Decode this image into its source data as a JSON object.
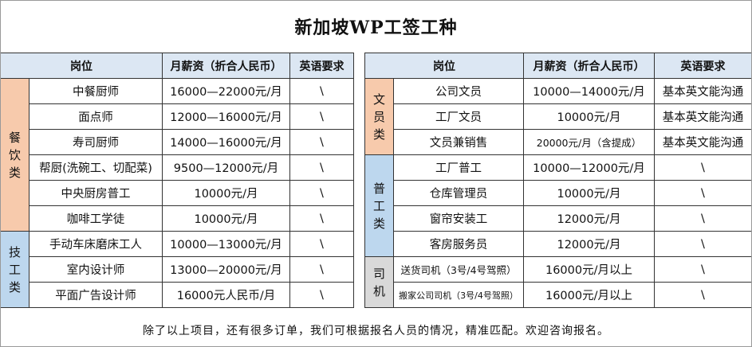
{
  "title": "新加坡WP工签工种",
  "headers": {
    "position": "岗位",
    "salary": "月薪资（折合人民币）",
    "english": "英语要求"
  },
  "left": {
    "groups": [
      {
        "category": [
          "餐",
          "饮",
          "类"
        ],
        "rows": [
          {
            "job": "中餐厨师",
            "salary": "16000—22000元/月",
            "english": "\\"
          },
          {
            "job": "面点师",
            "salary": "12000—16000元/月",
            "english": "\\"
          },
          {
            "job": "寿司厨师",
            "salary": "14000—16000元/月",
            "english": "\\"
          },
          {
            "job": "帮厨(洗碗工、切配菜)",
            "salary": "9500—12000元/月",
            "english": "\\"
          },
          {
            "job": "中央厨房普工",
            "salary": "10000元/月",
            "english": "\\"
          },
          {
            "job": "咖啡工学徒",
            "salary": "10000元/月",
            "english": "\\"
          }
        ]
      },
      {
        "category": [
          "技",
          "工",
          "类"
        ],
        "rows": [
          {
            "job": "手动车床磨床工人",
            "salary": "10000—13000元/月",
            "english": "\\"
          },
          {
            "job": "室内设计师",
            "salary": "13000—20000元/月",
            "english": "\\"
          },
          {
            "job": "平面广告设计师",
            "salary": "16000元人民币/月",
            "english": "\\"
          }
        ]
      }
    ]
  },
  "right": {
    "groups": [
      {
        "category": [
          "文",
          "员",
          "类"
        ],
        "rows": [
          {
            "job": "公司文员",
            "salary": "10000—14000元/月",
            "english": "基本英文能沟通"
          },
          {
            "job": "工厂文员",
            "salary": "10000元/月",
            "english": "基本英文能沟通"
          },
          {
            "job": "文员兼销售",
            "salary": "20000元/月（含提成）",
            "english": "基本英文能沟通"
          }
        ]
      },
      {
        "category": [
          "普",
          "工",
          "类"
        ],
        "rows": [
          {
            "job": "工厂普工",
            "salary": "10000—12000元/月",
            "english": "\\"
          },
          {
            "job": "仓库管理员",
            "salary": "10000元/月",
            "english": "\\"
          },
          {
            "job": "窗帘安装工",
            "salary": "12000元/月",
            "english": "\\"
          },
          {
            "job": "客房服务员",
            "salary": "12000元/月",
            "english": "\\"
          }
        ]
      },
      {
        "category": [
          "司",
          "机"
        ],
        "rows": [
          {
            "job": "送货司机（3号/4号驾照）",
            "salary": "16000元/月以上",
            "english": "\\"
          },
          {
            "job": "搬家公司司机（3号/4号驾照）",
            "salary": "16000元/月以上",
            "english": "\\"
          }
        ]
      }
    ]
  },
  "footer": "除了以上项目，还有很多订单，我们可根据报名人员的情况，精准匹配。欢迎咨询报名。"
}
